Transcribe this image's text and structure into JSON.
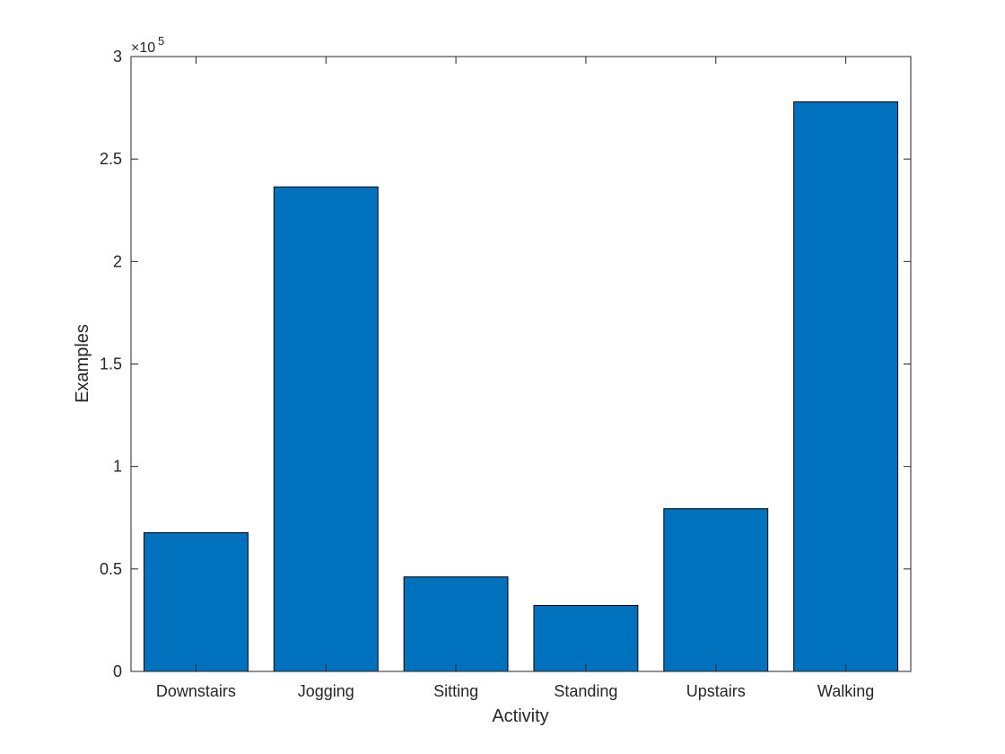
{
  "colors": {
    "bar_fill": "#0072BD",
    "bar_edge": "#000000",
    "axis": "#262626",
    "background": "#ffffff"
  },
  "chart_data": {
    "type": "bar",
    "categories": [
      "Downstairs",
      "Jogging",
      "Sitting",
      "Standing",
      "Upstairs",
      "Walking"
    ],
    "values": [
      67700,
      236400,
      46100,
      32200,
      79400,
      277900
    ],
    "xlabel": "Activity",
    "ylabel": "Examples",
    "ylim": [
      0,
      300000
    ],
    "yticks": [
      0,
      50000,
      100000,
      150000,
      200000,
      250000,
      300000
    ],
    "ytick_labels": [
      "0",
      "0.5",
      "1",
      "1.5",
      "2",
      "2.5",
      "3"
    ],
    "y_exponent_base": "×10",
    "y_exponent_power": "5",
    "grid": false,
    "legend": "none",
    "box": true
  }
}
